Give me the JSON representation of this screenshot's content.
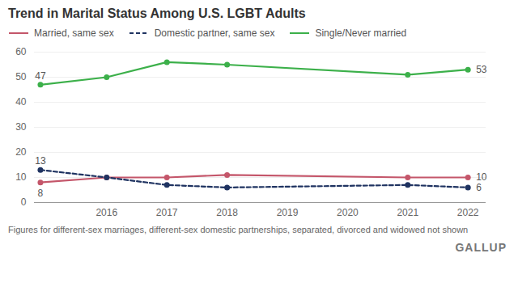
{
  "chart_data": {
    "type": "line",
    "title": "Trend in Marital Status Among U.S. LGBT Adults",
    "caption": "Figures for different-sex marriages, different-sex domestic partnerships, separated, divorced and widowed not shown",
    "source": "GALLUP",
    "x": [
      2014.9,
      2016,
      2017,
      2018,
      2021,
      2022
    ],
    "xlim": [
      2014.8,
      2022.3
    ],
    "xticks": [
      2016,
      2017,
      2018,
      2019,
      2020,
      2021,
      2022
    ],
    "ylim": [
      0,
      60
    ],
    "yticks": [
      0,
      10,
      20,
      30,
      40,
      50,
      60
    ],
    "grid": "y",
    "legend": "top-left",
    "series": [
      {
        "name": "Married, same sex",
        "color": "#c4566a",
        "marker": "circle",
        "line_style": "solid",
        "values": [
          8,
          10,
          10,
          11,
          10,
          10
        ],
        "value_labels": [
          "8",
          null,
          null,
          null,
          null,
          "10"
        ]
      },
      {
        "name": "Domestic partner, same sex",
        "color": "#1f3361",
        "marker": "circle",
        "line_style": "dashed",
        "values": [
          13,
          10,
          7,
          6,
          7,
          6
        ],
        "value_labels": [
          "13",
          null,
          null,
          null,
          null,
          "6"
        ]
      },
      {
        "name": "Single/Never married",
        "color": "#3cb04a",
        "marker": "circle",
        "line_style": "solid",
        "values": [
          47,
          50,
          56,
          55,
          51,
          53
        ],
        "value_labels": [
          "47",
          null,
          null,
          null,
          null,
          "53"
        ]
      }
    ]
  }
}
